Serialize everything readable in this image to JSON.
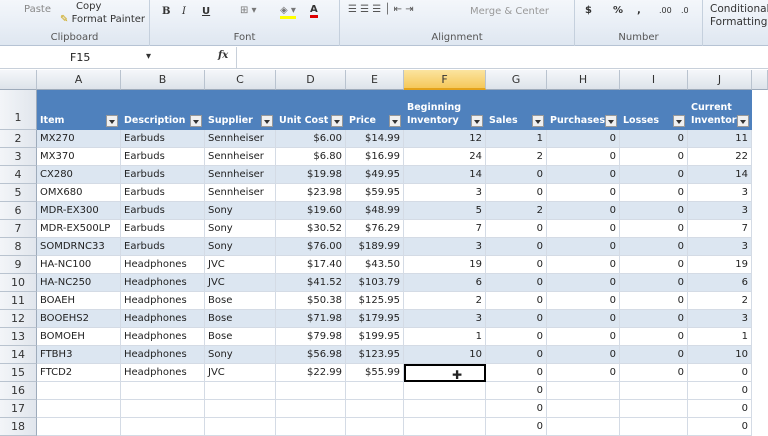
{
  "ribbon": {
    "clipboard": {
      "paste": "Paste",
      "copy": "Copy",
      "format_painter": "Format Painter",
      "label": "Clipboard"
    },
    "font": {
      "bold": "B",
      "italic": "I",
      "underline": "U",
      "font_color": "A",
      "label": "Font"
    },
    "alignment": {
      "merge": "Merge & Center",
      "label": "Alignment"
    },
    "number": {
      "currency": "$",
      "percent": "%",
      "comma": ",",
      "inc_decimal": ".00",
      "dec_decimal": ".0",
      "label": "Number"
    },
    "styles": {
      "conditional": "Conditional",
      "formatting": "Formatting"
    }
  },
  "formula_bar": {
    "name_box": "F15",
    "fx": "fx",
    "value": ""
  },
  "columns": [
    "A",
    "B",
    "C",
    "D",
    "E",
    "F",
    "G",
    "H",
    "I",
    "J"
  ],
  "selected_cell": "F15",
  "table_headers": [
    "Item",
    "Description",
    "Supplier",
    "Unit Cost",
    "Price",
    "Beginning Inventory",
    "Sales",
    "Purchases",
    "Losses",
    "Current Inventory"
  ],
  "rows": [
    [
      "MX270",
      "Earbuds",
      "Sennheiser",
      "$6.00",
      "$14.99",
      "12",
      "1",
      "0",
      "0",
      "11"
    ],
    [
      "MX370",
      "Earbuds",
      "Sennheiser",
      "$6.80",
      "$16.99",
      "24",
      "2",
      "0",
      "0",
      "22"
    ],
    [
      "CX280",
      "Earbuds",
      "Sennheiser",
      "$19.98",
      "$49.95",
      "14",
      "0",
      "0",
      "0",
      "14"
    ],
    [
      "OMX680",
      "Earbuds",
      "Sennheiser",
      "$23.98",
      "$59.95",
      "3",
      "0",
      "0",
      "0",
      "3"
    ],
    [
      "MDR-EX300",
      "Earbuds",
      "Sony",
      "$19.60",
      "$48.99",
      "5",
      "2",
      "0",
      "0",
      "3"
    ],
    [
      "MDR-EX500LP",
      "Earbuds",
      "Sony",
      "$30.52",
      "$76.29",
      "7",
      "0",
      "0",
      "0",
      "7"
    ],
    [
      "SOMDRNC33",
      "Earbuds",
      "Sony",
      "$76.00",
      "$189.99",
      "3",
      "0",
      "0",
      "0",
      "3"
    ],
    [
      "HA-NC100",
      "Headphones",
      "JVC",
      "$17.40",
      "$43.50",
      "19",
      "0",
      "0",
      "0",
      "19"
    ],
    [
      "HA-NC250",
      "Headphones",
      "JVC",
      "$41.52",
      "$103.79",
      "6",
      "0",
      "0",
      "0",
      "6"
    ],
    [
      "BOAEH",
      "Headphones",
      "Bose",
      "$50.38",
      "$125.95",
      "2",
      "0",
      "0",
      "0",
      "2"
    ],
    [
      "BOOEHS2",
      "Headphones",
      "Bose",
      "$71.98",
      "$179.95",
      "3",
      "0",
      "0",
      "0",
      "3"
    ],
    [
      "BOMOEH",
      "Headphones",
      "Bose",
      "$79.98",
      "$199.95",
      "1",
      "0",
      "0",
      "0",
      "1"
    ],
    [
      "FTBH3",
      "Headphones",
      "Sony",
      "$56.98",
      "$123.95",
      "10",
      "0",
      "0",
      "0",
      "10"
    ],
    [
      "FTCD2",
      "Headphones",
      "JVC",
      "$22.99",
      "$55.99",
      "",
      "0",
      "0",
      "0",
      "0"
    ],
    [
      "",
      "",
      "",
      "",
      "",
      "",
      "0",
      "",
      "",
      "0"
    ],
    [
      "",
      "",
      "",
      "",
      "",
      "",
      "0",
      "",
      "",
      "0"
    ],
    [
      "",
      "",
      "",
      "",
      "",
      "",
      "0",
      "",
      "",
      "0"
    ]
  ],
  "row_numbers": [
    "1",
    "2",
    "3",
    "4",
    "5",
    "6",
    "7",
    "8",
    "9",
    "10",
    "11",
    "12",
    "13",
    "14",
    "15",
    "16",
    "17",
    "18"
  ]
}
